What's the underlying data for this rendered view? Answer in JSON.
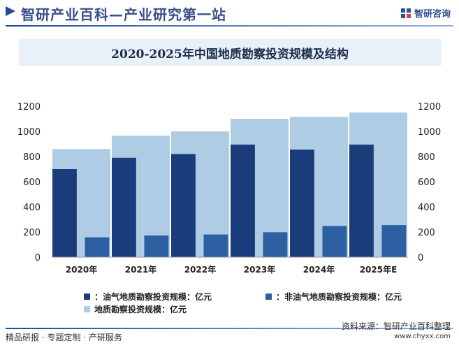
{
  "header": {
    "title": "智研产业百科—产业研究第一站",
    "brand": "智研咨询",
    "accent": "#1f4e8c"
  },
  "footer": {
    "left": "精品研报 · 专题定制 · 产研服务",
    "source": "资料来源：智研产业百科整理",
    "url": "www.chyxx.com"
  },
  "chart_data": {
    "type": "bar",
    "title": "2020-2025年中国地质勘察投资规模及结构",
    "categories": [
      "2020年",
      "2021年",
      "2022年",
      "2023年",
      "2024年",
      "2025年E"
    ],
    "ylim": [
      0,
      1200
    ],
    "yticks": [
      "0",
      "200",
      "400",
      "600",
      "800",
      "1000",
      "1200"
    ],
    "series": [
      {
        "name": "地质勘察投资规模：亿元",
        "values": [
          860,
          965,
          1000,
          1100,
          1115,
          1150
        ],
        "color": "#aecde4"
      },
      {
        "name": "：油气地质勘察投资规模：亿元",
        "values": [
          700,
          790,
          820,
          895,
          855,
          895
        ],
        "color": "#1a3c7a"
      },
      {
        "name": "：非油气地质勘察投资规模：亿元",
        "values": [
          158,
          172,
          180,
          198,
          248,
          255
        ],
        "color": "#2f5fa3"
      }
    ],
    "legend_position": "bottom",
    "grid": false
  }
}
